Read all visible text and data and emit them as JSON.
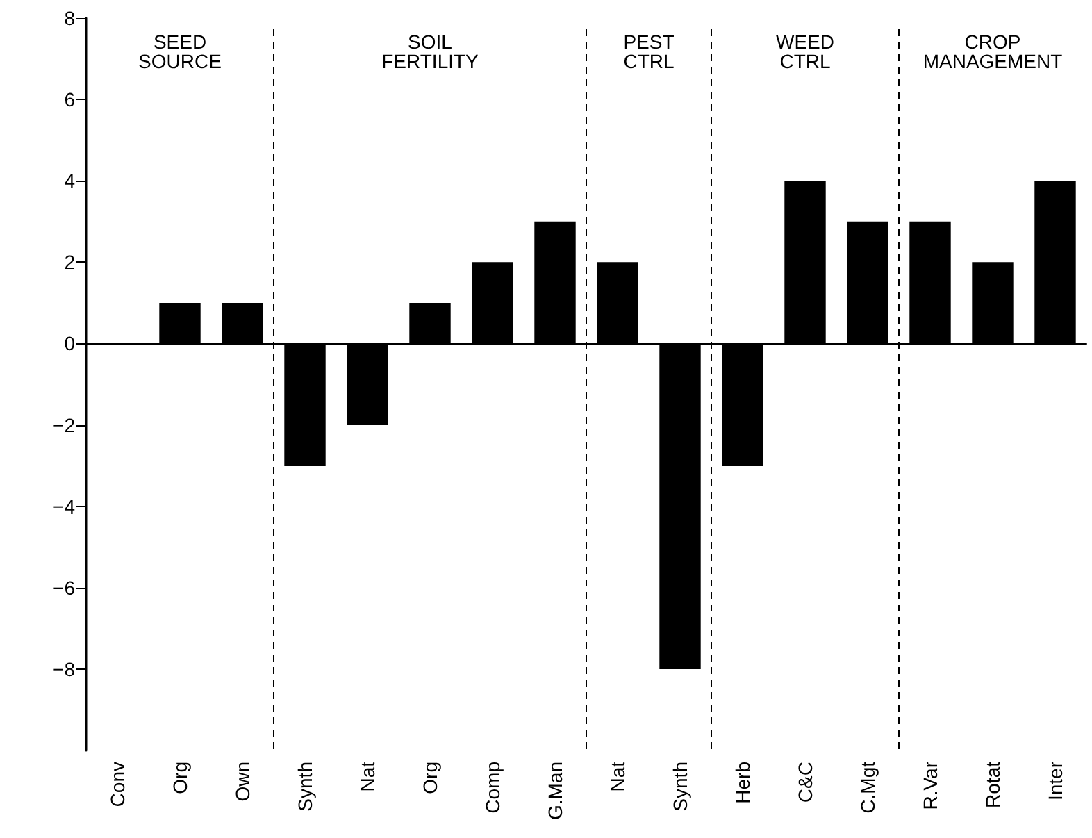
{
  "chart_data": {
    "type": "bar",
    "categories": [
      "Conv",
      "Org",
      "Own",
      "Synth",
      "Nat",
      "Org",
      "Comp",
      "G.Man",
      "Nat",
      "Synth",
      "Herb",
      "C&C",
      "C.Mgt",
      "R.Var",
      "Rotat",
      "Inter"
    ],
    "values": [
      0,
      1,
      1,
      -3,
      -2,
      1,
      2,
      3,
      2,
      -8,
      -3,
      4,
      3,
      3,
      2,
      4
    ],
    "color": "#000000",
    "ylim": [
      -10,
      8
    ],
    "yticks": [
      -8,
      -6,
      -4,
      -2,
      0,
      2,
      4,
      6,
      8
    ],
    "grid": false,
    "annotations": [
      "SEED\nSOURCE",
      "SOIL\nFERTILITY",
      "PEST\nCTRL",
      "WEED\nCTRL",
      "CROP\nMANAGEMENT"
    ]
  }
}
